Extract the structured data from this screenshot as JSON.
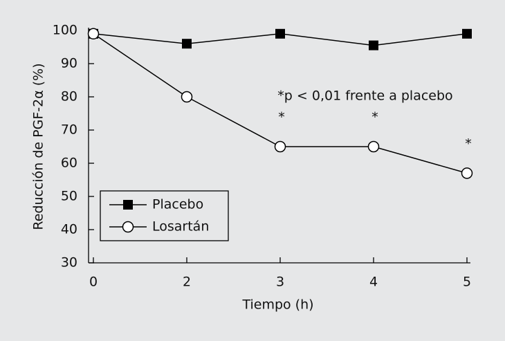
{
  "chart_data": {
    "type": "line",
    "y_label": "Reducción de PGF-2α (%)",
    "x_label": "Tiempo (h)",
    "categories": [
      "0",
      "2",
      "3",
      "4",
      "5"
    ],
    "series": [
      {
        "name": "Placebo",
        "color": "#000000",
        "marker": "filled-square",
        "values": [
          99,
          96,
          99,
          95.5,
          99
        ]
      },
      {
        "name": "Losartán",
        "color": "#000000",
        "marker": "open-circle",
        "values": [
          99,
          80,
          65,
          65,
          57
        ]
      }
    ],
    "significance": [
      null,
      null,
      "*",
      "*",
      "*"
    ],
    "annotation": "*p < 0,01 frente a placebo",
    "ylim": [
      30,
      100
    ],
    "yticks": [
      30,
      40,
      50,
      60,
      70,
      80,
      90,
      100
    ],
    "legend": "lower-left",
    "grid": false
  }
}
